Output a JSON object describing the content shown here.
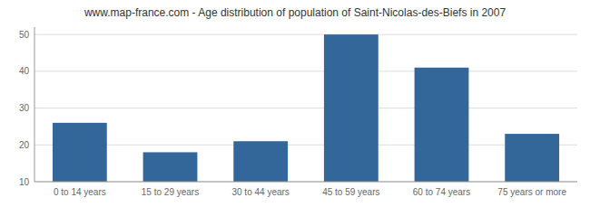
{
  "chart_data": {
    "type": "bar",
    "title": "www.map-france.com - Age distribution of population of Saint-Nicolas-des-Biefs in 2007",
    "categories": [
      "0 to 14 years",
      "15 to 29 years",
      "30 to 44 years",
      "45 to 59 years",
      "60 to 74 years",
      "75 years or more"
    ],
    "values": [
      26,
      18,
      21,
      50,
      41,
      23
    ],
    "color": "#336699",
    "ylim": [
      10,
      52
    ],
    "yticks": [
      10,
      20,
      30,
      40,
      50
    ],
    "grid": true
  }
}
